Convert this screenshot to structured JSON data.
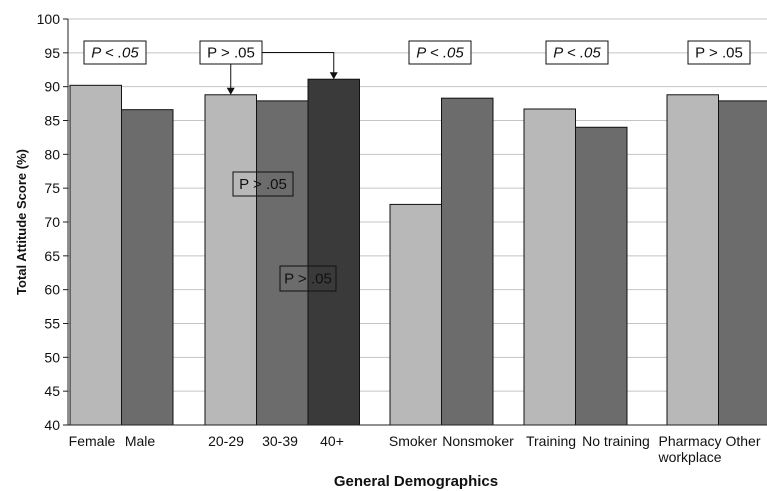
{
  "chart_data": {
    "type": "bar",
    "xlabel": "General Demographics",
    "ylabel": "Total Attitude Score (%)",
    "ylim": [
      40,
      100
    ],
    "yticks": [
      "40",
      "45",
      "50",
      "55",
      "60",
      "65",
      "70",
      "75",
      "80",
      "85",
      "90",
      "95",
      "100"
    ],
    "grid": "horizontal",
    "groups": [
      {
        "name": "gender",
        "bars": [
          {
            "label": "Female",
            "value": 90.2,
            "color": "#b8b8b8"
          },
          {
            "label": "Male",
            "value": 86.6,
            "color": "#6c6c6c"
          }
        ]
      },
      {
        "name": "age",
        "bars": [
          {
            "label": "20-29",
            "value": 88.8,
            "color": "#b8b8b8"
          },
          {
            "label": "30-39",
            "value": 87.9,
            "color": "#6c6c6c"
          },
          {
            "label": "40+",
            "value": 91.1,
            "color": "#3a3a3a"
          }
        ]
      },
      {
        "name": "smoking",
        "bars": [
          {
            "label": "Smoker",
            "value": 72.6,
            "color": "#b8b8b8"
          },
          {
            "label": "Nonsmoker",
            "value": 88.3,
            "color": "#6c6c6c"
          }
        ]
      },
      {
        "name": "training",
        "bars": [
          {
            "label": "Training",
            "value": 86.7,
            "color": "#b8b8b8"
          },
          {
            "label": "No training",
            "value": 84.0,
            "color": "#6c6c6c"
          }
        ]
      },
      {
        "name": "workplace",
        "bars": [
          {
            "label": "Pharmacy\nworkplace",
            "value": 88.8,
            "color": "#b8b8b8"
          },
          {
            "label": "Other",
            "value": 87.9,
            "color": "#6c6c6c"
          }
        ]
      }
    ],
    "annotations": [
      {
        "group": "gender",
        "text": "P < .05",
        "italic": true
      },
      {
        "group": "age",
        "text": "P > .05",
        "italic": false
      },
      {
        "group": "smoking",
        "text": "P < .05",
        "italic": true
      },
      {
        "group": "training",
        "text": "P < .05",
        "italic": true
      },
      {
        "group": "workplace",
        "text": "P > .05",
        "italic": false
      },
      {
        "group": "age",
        "text": "P > .05",
        "italic": false
      },
      {
        "group": "age",
        "text": "P > .05",
        "italic": false
      }
    ]
  }
}
